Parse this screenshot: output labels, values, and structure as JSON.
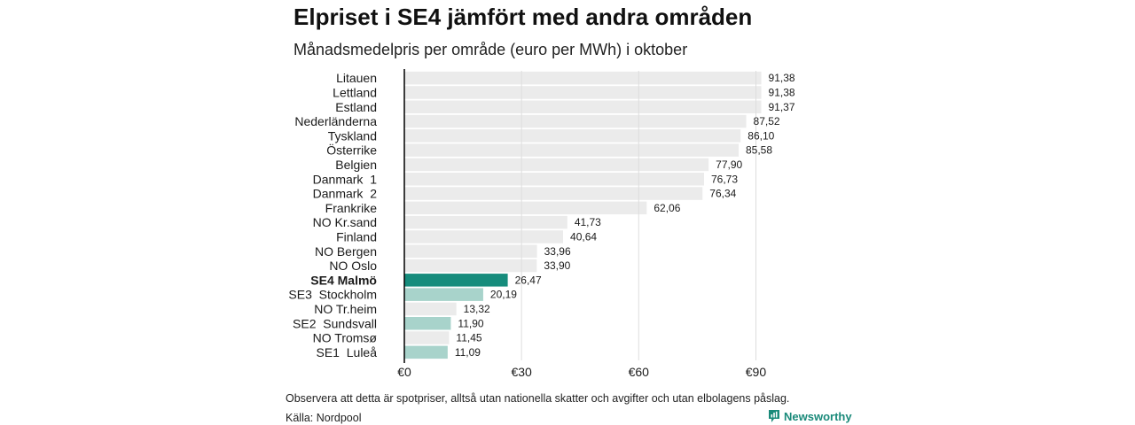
{
  "title": "Elpriset i SE4 jämfört med andra områden",
  "subtitle": "Månadsmedelpris per område (euro per MWh) i oktober",
  "note": "Observera att detta är spotpriser, alltså utan nationella skatter och avgifter och utan elbolagens påslag.",
  "source": "Källa: Nordpool",
  "brand": {
    "name": "Newsworthy",
    "icon": "newsworthy-logo-icon",
    "color": "#1a8a7a"
  },
  "colors": {
    "bar_default": "#ebebeb",
    "bar_highlight": "#168c7c",
    "bar_se": "#a8d3cb",
    "grid": "#dddddd",
    "axis": "#000000"
  },
  "chart_data": {
    "type": "bar",
    "orientation": "horizontal",
    "xlim": [
      0,
      92
    ],
    "xticks": [
      0,
      30,
      60,
      90
    ],
    "xtick_labels": [
      "€0",
      "€30",
      "€60",
      "€90"
    ],
    "grid": true,
    "categories": [
      "Litauen",
      "Lettland",
      "Estland",
      "Nederländerna",
      "Tyskland",
      "Österrike",
      "Belgien",
      "Danmark  1",
      "Danmark  2",
      "Frankrike",
      "NO Kr.sand",
      "Finland",
      "NO Bergen",
      "NO Oslo",
      "SE4 Malmö",
      "SE3  Stockholm",
      "NO Tr.heim",
      "SE2  Sundsvall",
      "NO Tromsø",
      "SE1  Luleå"
    ],
    "values": [
      91.38,
      91.38,
      91.37,
      87.52,
      86.1,
      85.58,
      77.9,
      76.73,
      76.34,
      62.06,
      41.73,
      40.64,
      33.96,
      33.9,
      26.47,
      20.19,
      13.32,
      11.9,
      11.45,
      11.09
    ],
    "value_labels": [
      "91,38",
      "91,38",
      "91,37",
      "87,52",
      "86,10",
      "85,58",
      "77,90",
      "76,73",
      "76,34",
      "62,06",
      "41,73",
      "40,64",
      "33,96",
      "33,90",
      "26,47",
      "20,19",
      "13,32",
      "11,90",
      "11,45",
      "11,09"
    ],
    "bar_style": [
      "default",
      "default",
      "default",
      "default",
      "default",
      "default",
      "default",
      "default",
      "default",
      "default",
      "default",
      "default",
      "default",
      "default",
      "highlight",
      "se",
      "default",
      "se",
      "default",
      "se"
    ]
  }
}
